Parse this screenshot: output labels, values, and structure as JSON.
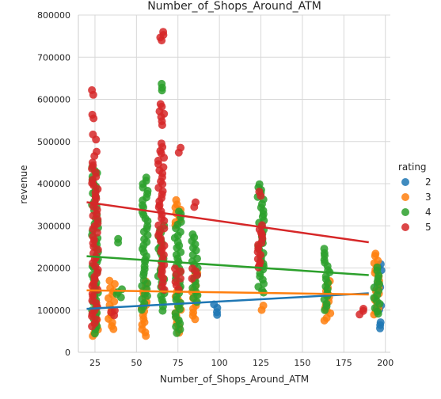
{
  "chart_data": {
    "type": "scatter",
    "title": "Number_of_Shops_Around_ATM",
    "xlabel": "Number_of_Shops_Around_ATM",
    "ylabel": "revenue",
    "xlim": [
      15,
      203
    ],
    "ylim": [
      0,
      800000
    ],
    "x_ticks": [
      25,
      50,
      75,
      100,
      125,
      150,
      175,
      200
    ],
    "y_ticks": [
      0,
      100000,
      200000,
      300000,
      400000,
      500000,
      600000,
      700000,
      800000
    ],
    "grid": true,
    "legend": {
      "title": "rating",
      "placement": "right"
    },
    "series": [
      {
        "name": "2",
        "color": "#1f77b4",
        "columns": [
          {
            "x": 98,
            "ranges": [
              [
                88000,
                115000
              ]
            ]
          },
          {
            "x": 196,
            "ranges": [
              [
                58000,
                70000
              ],
              [
                100000,
                112000
              ],
              [
                148000,
                160000
              ],
              [
                196000,
                208000
              ]
            ]
          }
        ],
        "regression": {
          "x": [
            20,
            190
          ],
          "y": [
            103000,
            140000
          ]
        }
      },
      {
        "name": "3",
        "color": "#ff7f0e",
        "columns": [
          {
            "x": 25,
            "ranges": [
              [
                38000,
                170000
              ]
            ]
          },
          {
            "x": 35,
            "ranges": [
              [
                55000,
                170000
              ]
            ]
          },
          {
            "x": 55,
            "ranges": [
              [
                40000,
                170000
              ]
            ]
          },
          {
            "x": 75,
            "ranges": [
              [
                45000,
                150000
              ],
              [
                300000,
                360000
              ]
            ]
          },
          {
            "x": 85,
            "ranges": [
              [
                80000,
                190000
              ]
            ]
          },
          {
            "x": 125,
            "ranges": [
              [
                100000,
                110000
              ]
            ]
          },
          {
            "x": 165,
            "ranges": [
              [
                75000,
                170000
              ]
            ]
          },
          {
            "x": 195,
            "ranges": [
              [
                90000,
                235000
              ]
            ]
          }
        ],
        "regression": {
          "x": [
            20,
            190
          ],
          "y": [
            147000,
            137000
          ]
        }
      },
      {
        "name": "4",
        "color": "#2ca02c",
        "columns": [
          {
            "x": 25,
            "ranges": [
              [
                45000,
                440000
              ]
            ]
          },
          {
            "x": 40,
            "ranges": [
              [
                130000,
                150000
              ],
              [
                260000,
                270000
              ]
            ]
          },
          {
            "x": 55,
            "ranges": [
              [
                100000,
                415000
              ]
            ]
          },
          {
            "x": 65,
            "ranges": [
              [
                100000,
                300000
              ],
              [
                620000,
                635000
              ]
            ]
          },
          {
            "x": 75,
            "ranges": [
              [
                45000,
                335000
              ]
            ]
          },
          {
            "x": 85,
            "ranges": [
              [
                120000,
                280000
              ]
            ]
          },
          {
            "x": 125,
            "ranges": [
              [
                140000,
                400000
              ]
            ]
          },
          {
            "x": 165,
            "ranges": [
              [
                100000,
                245000
              ]
            ]
          },
          {
            "x": 195,
            "ranges": [
              [
                90000,
                200000
              ]
            ]
          }
        ],
        "regression": {
          "x": [
            20,
            190
          ],
          "y": [
            228000,
            183000
          ]
        }
      },
      {
        "name": "5",
        "color": "#d62728",
        "columns": [
          {
            "x": 25,
            "ranges": [
              [
                60000,
                450000
              ],
              [
                465000,
                475000
              ],
              [
                505000,
                515000
              ],
              [
                555000,
                565000
              ],
              [
                612000,
                620000
              ]
            ]
          },
          {
            "x": 35,
            "ranges": [
              [
                88000,
                100000
              ]
            ]
          },
          {
            "x": 65,
            "ranges": [
              [
                150000,
                495000
              ],
              [
                540000,
                590000
              ],
              [
                740000,
                760000
              ]
            ]
          },
          {
            "x": 75,
            "ranges": [
              [
                150000,
                200000
              ],
              [
                475000,
                485000
              ]
            ]
          },
          {
            "x": 85,
            "ranges": [
              [
                175000,
                200000
              ],
              [
                345000,
                355000
              ]
            ]
          },
          {
            "x": 125,
            "ranges": [
              [
                200000,
                300000
              ],
              [
                370000,
                380000
              ]
            ]
          },
          {
            "x": 185,
            "ranges": [
              [
                90000,
                105000
              ]
            ]
          }
        ],
        "regression": {
          "x": [
            20,
            190
          ],
          "y": [
            356000,
            261000
          ]
        }
      }
    ]
  }
}
